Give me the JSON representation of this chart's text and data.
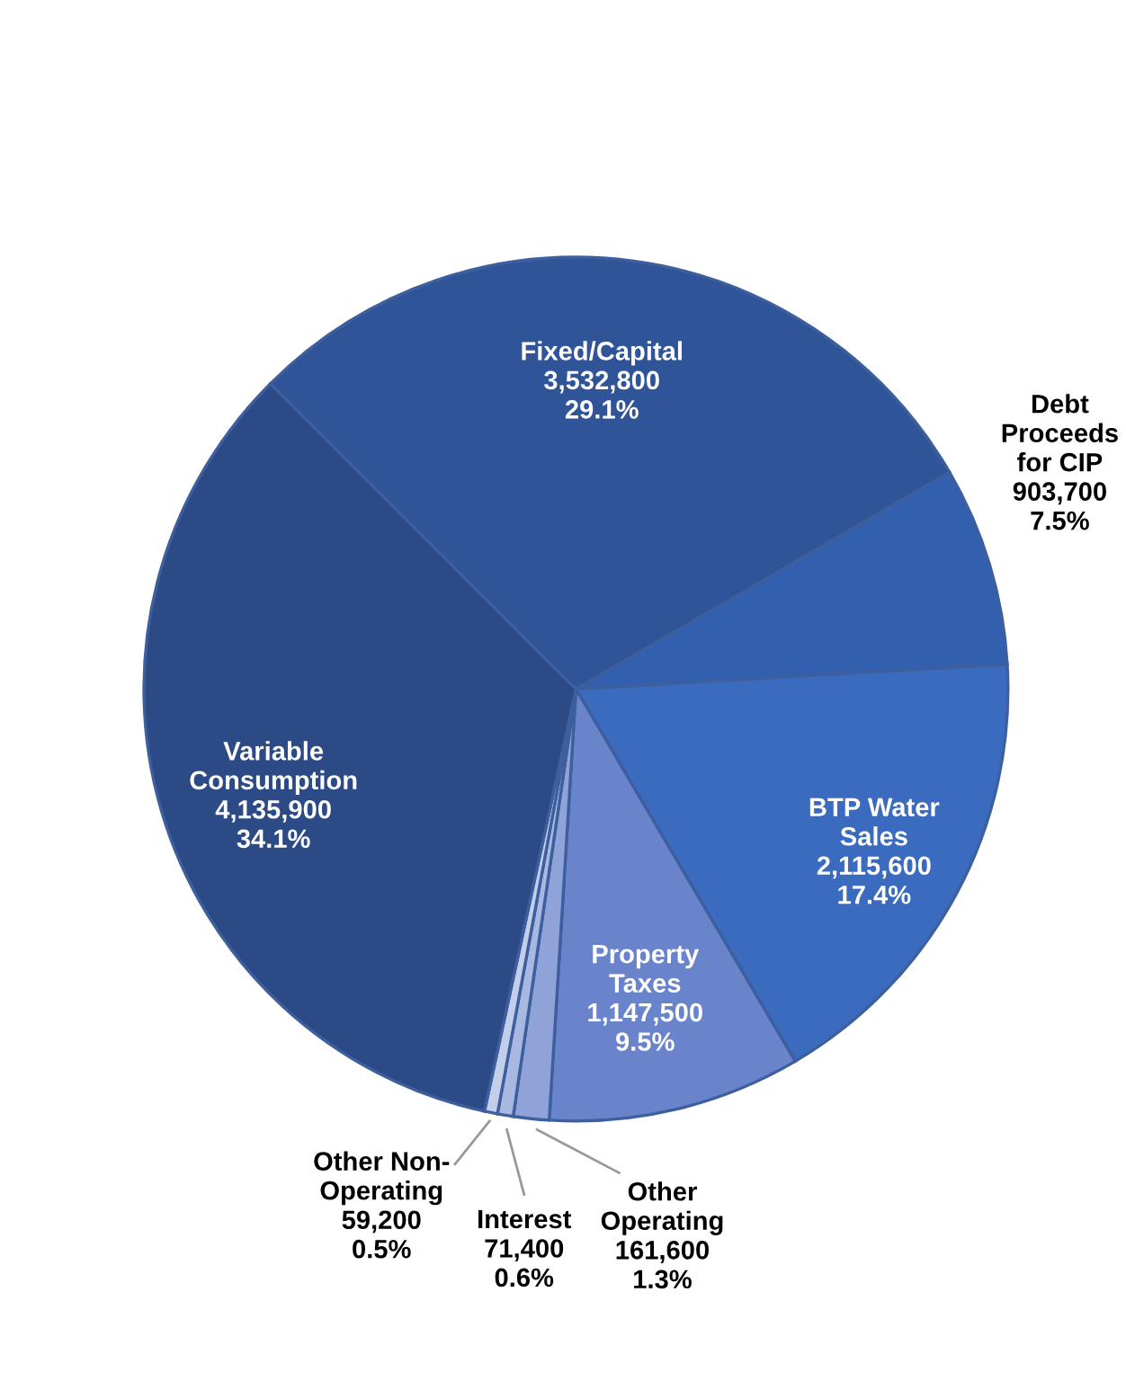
{
  "chart_data": {
    "type": "pie",
    "categories": [
      "Fixed/Capital",
      "Debt\nProceeds\nfor CIP",
      "BTP Water\nSales",
      "Property\nTaxes",
      "Other\nOperating",
      "Interest",
      "Other Non-\nOperating",
      "Variable\nConsumption"
    ],
    "values": [
      3532800,
      903700,
      2115600,
      1147500,
      161600,
      71400,
      59200,
      4135900
    ],
    "value_labels": [
      "3,532,800\n29.1%",
      "903,700\n7.5%",
      "2,115,600\n17.4%",
      "1,147,500\n9.5%",
      "161,600\n1.3%",
      "71,400\n0.6%",
      "59,200\n0.5%",
      "4,135,900\n34.1%"
    ],
    "colors": [
      "#2f5497",
      "#3360ae",
      "#3a6bbf",
      "#6a84cc",
      "#8fa3d8",
      "#a9b8e0",
      "#c3cfea",
      "#2b4a86"
    ]
  }
}
